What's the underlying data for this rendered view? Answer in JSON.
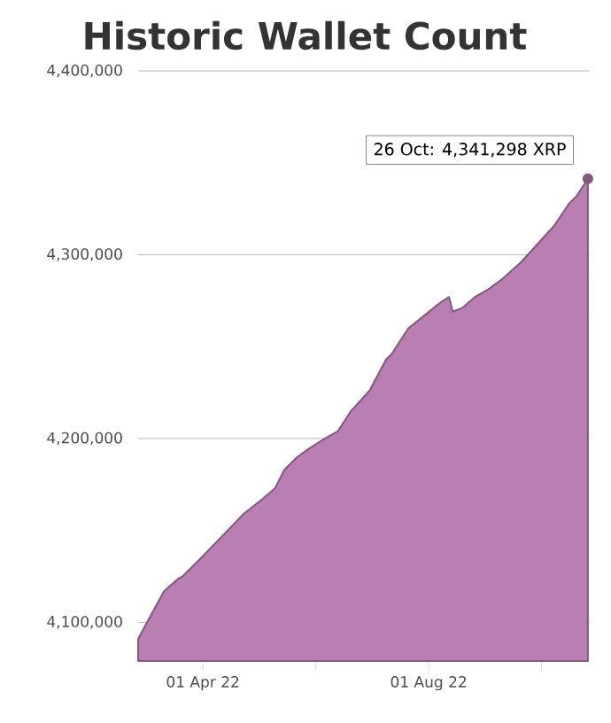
{
  "chart_data": {
    "type": "area",
    "title": "Historic Wallet Count",
    "x": [
      "2022-02-25",
      "2022-03-11",
      "2022-03-19",
      "2022-03-21",
      "2022-03-31",
      "2022-04-23",
      "2022-05-03",
      "2022-05-10",
      "2022-05-15",
      "2022-05-22",
      "2022-05-29",
      "2022-06-06",
      "2022-06-13",
      "2022-06-20",
      "2022-06-30",
      "2022-07-09",
      "2022-07-12",
      "2022-07-21",
      "2022-07-31",
      "2022-08-06",
      "2022-08-12",
      "2022-08-14",
      "2022-08-19",
      "2022-08-26",
      "2022-09-02",
      "2022-09-10",
      "2022-09-20",
      "2022-09-29",
      "2022-10-08",
      "2022-10-16",
      "2022-10-20",
      "2022-10-26"
    ],
    "series": [
      {
        "color": "#b97fb3",
        "values": [
          4091000,
          4117000,
          4124000,
          4125000,
          4135000,
          4159000,
          4167000,
          4173000,
          4183000,
          4190000,
          4195000,
          4200000,
          4204000,
          4215000,
          4226000,
          4243000,
          4246000,
          4260000,
          4268000,
          4273000,
          4277000,
          4269000,
          4271000,
          4277000,
          4281000,
          4287000,
          4296000,
          4306000,
          4316000,
          4328000,
          4332000,
          4341298
        ]
      }
    ],
    "xlim": [
      "2022-02-25",
      "2022-10-27"
    ],
    "xticks": [
      {
        "value": "2022-04-01",
        "label": "01 Apr 22"
      },
      {
        "value": "2022-06-01",
        "label": null
      },
      {
        "value": "2022-08-01",
        "label": "01 Aug 22"
      },
      {
        "value": "2022-10-01",
        "label": null
      }
    ],
    "ylim": [
      4079000,
      4400000
    ],
    "yticks": [
      {
        "value": 4100000,
        "label": "4,100,000"
      },
      {
        "value": 4200000,
        "label": "4,200,000"
      },
      {
        "value": 4300000,
        "label": "4,300,000"
      },
      {
        "value": 4400000,
        "label": "4,400,000"
      }
    ],
    "grid": "y",
    "annotations": [
      {
        "text": "26 Oct:  4,341,298 XRP",
        "x": "2022-10-26",
        "y": 4341298
      }
    ]
  }
}
